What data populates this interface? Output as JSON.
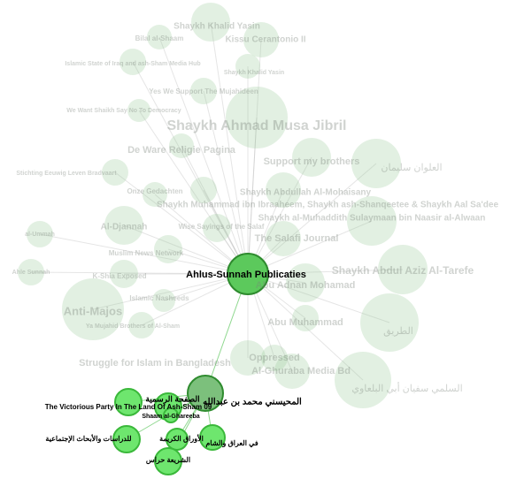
{
  "nodes": [
    {
      "label": "Shaykh Khalid Yasin"
    },
    {
      "label": "Bilal al-Shaam"
    },
    {
      "label": "Kissu Cerantonio II"
    },
    {
      "label": "Islamic State of Iraq and ash-Sham Media Hub"
    },
    {
      "label": "Shaykh Khalid Yasin"
    },
    {
      "label": "Yes We Support The Mujahideen"
    },
    {
      "label": "We Want Shaikh Say No To Democracy"
    },
    {
      "label": "Shaykh Ahmad Musa Jibril"
    },
    {
      "label": "De Ware Religie Pagina"
    },
    {
      "label": "Support my brothers"
    },
    {
      "label": "العلوان سليمان"
    },
    {
      "label": "Stichting Eeuwig Leven Bradvaart"
    },
    {
      "label": "Onze Gedachten"
    },
    {
      "label": "Shaykh Abdullah Al-Mohaisany"
    },
    {
      "label": "Shaykh Muhammad ibn Ibraaheem, Shaykh ash-Shanqeetee & Shaykh Aal Sa'dee"
    },
    {
      "label": "Shaykh al-Muhaddith Sulaymaan bin Naasir al-Alwaan"
    },
    {
      "label": "Al-Djannah"
    },
    {
      "label": "Wise Sayings of the Salaf"
    },
    {
      "label": "The Salafi Journal"
    },
    {
      "label": "Muslim News Network"
    },
    {
      "label": "Shaykh Abdul Aziz Al-Tarefe"
    },
    {
      "label": "al-Ummah"
    },
    {
      "label": "Ahle Sunnah"
    },
    {
      "label": "K-Shia Exposed"
    },
    {
      "label": "Anti-Majos"
    },
    {
      "label": "Abu Adnan Mohamad"
    },
    {
      "label": "Islamic Nasheeds"
    },
    {
      "label": "Ya Mujahid Brothers of Al-Sham"
    },
    {
      "label": "Abu Muhammad"
    },
    {
      "label": "الطريق"
    },
    {
      "label": "Struggle for Islam in Bangladesh"
    },
    {
      "label": "Oppressed"
    },
    {
      "label": "Al-Ghuraba Media Bd"
    },
    {
      "label": "السلمي سفيان أبي البلعاوي"
    },
    {
      "label": "Ahlus-Sunnah Publicaties"
    },
    {
      "label": "المحيسني محمد بن عبدالله"
    },
    {
      "label": "The Victorious Party In The Land Of Ash-Sham 09"
    },
    {
      "label": "الصفحة الرسمية"
    },
    {
      "label": "Shaam al-Ghareeba"
    },
    {
      "label": "للدراسات والأبحاث الإجتماعية"
    },
    {
      "label": "الأوراق الكريمة"
    },
    {
      "label": "في العراق والشام"
    },
    {
      "label": "الشريعة حراس"
    }
  ]
}
